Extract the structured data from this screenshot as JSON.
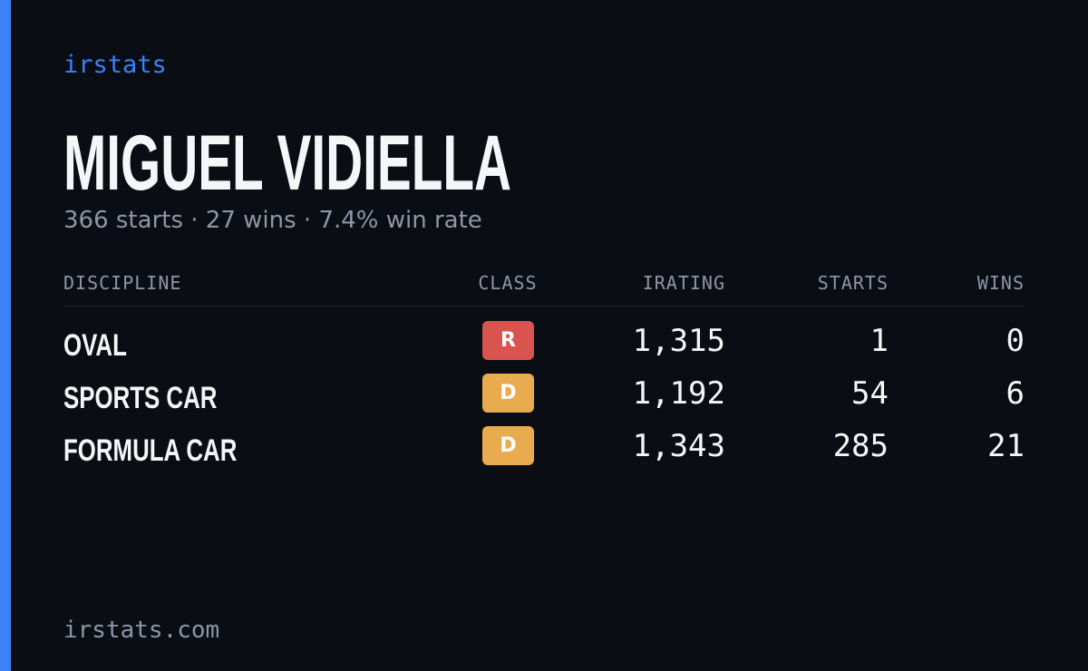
{
  "header": {
    "brand": "irstats",
    "name": "MIGUEL VIDIELLA",
    "summary": "366 starts · 27 wins · 7.4% win rate"
  },
  "table": {
    "columns": [
      "DISCIPLINE",
      "CLASS",
      "IRATING",
      "STARTS",
      "WINS"
    ],
    "rows": [
      {
        "discipline": "OVAL",
        "class": "R",
        "class_color": "#d9534f",
        "irating": "1,315",
        "starts": "1",
        "wins": "0"
      },
      {
        "discipline": "SPORTS CAR",
        "class": "D",
        "class_color": "#e8ac4e",
        "irating": "1,192",
        "starts": "54",
        "wins": "6"
      },
      {
        "discipline": "FORMULA CAR",
        "class": "D",
        "class_color": "#e8ac4e",
        "irating": "1,343",
        "starts": "285",
        "wins": "21"
      }
    ]
  },
  "footer": {
    "site": "irstats.com"
  }
}
